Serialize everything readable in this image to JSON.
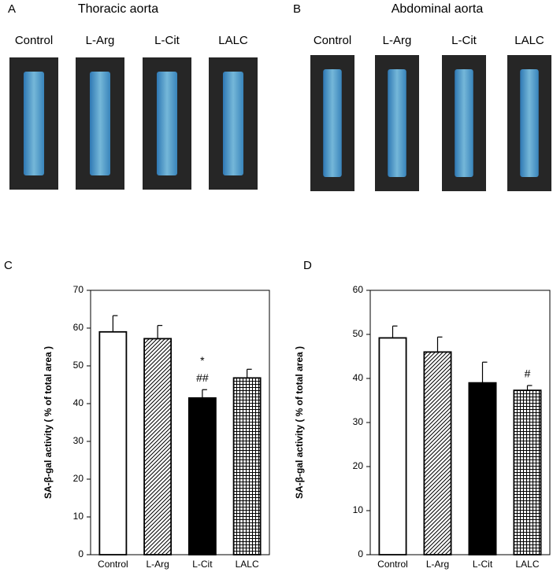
{
  "photo_panels": [
    {
      "label": "A",
      "title": "Thoracic aorta",
      "samples": [
        "Control",
        "L-Arg",
        "L-Cit",
        "LALC"
      ]
    },
    {
      "label": "B",
      "title": "Abdominal aorta",
      "samples": [
        "Control",
        "L-Arg",
        "L-Cit",
        "LALC"
      ]
    }
  ],
  "chart_data": [
    {
      "type": "bar",
      "panel_label": "C",
      "y_label": "SA-β-gal activity ( % of total area )",
      "categories": [
        "Control",
        "L-Arg",
        "L-Cit",
        "LALC"
      ],
      "values": [
        59,
        57.2,
        41.5,
        46.8
      ],
      "errors": [
        4.3,
        3.5,
        2.2,
        2.3
      ],
      "bar_fills": [
        "white",
        "diagonal",
        "solid",
        "grid"
      ],
      "annotations": [
        {
          "category": "L-Cit",
          "text": "*"
        },
        {
          "category": "L-Cit",
          "text": "##"
        }
      ],
      "ylim": [
        0,
        70
      ],
      "yticks": [
        0,
        10,
        20,
        30,
        40,
        50,
        60,
        70
      ]
    },
    {
      "type": "bar",
      "panel_label": "D",
      "y_label": "SA-β-gal activity ( % of total area )",
      "categories": [
        "Control",
        "L-Arg",
        "L-Cit",
        "LALC"
      ],
      "values": [
        49.2,
        46,
        39,
        37.3
      ],
      "errors": [
        2.7,
        3.4,
        4.7,
        1.1
      ],
      "bar_fills": [
        "white",
        "diagonal",
        "solid",
        "grid"
      ],
      "annotations": [
        {
          "category": "LALC",
          "text": "#"
        }
      ],
      "ylim": [
        0,
        60
      ],
      "yticks": [
        0,
        10,
        20,
        30,
        40,
        50,
        60
      ]
    }
  ]
}
